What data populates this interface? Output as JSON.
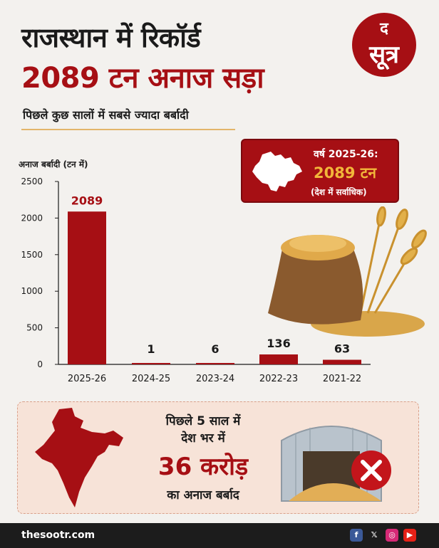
{
  "header": {
    "title_line1": "राजस्थान में रिकॉर्ड",
    "title_line2": "2089 टन अनाज सड़ा",
    "subtitle": "पिछले कुछ सालों में सबसे ज्यादा बर्बादी"
  },
  "logo": {
    "line1": "द",
    "line2": "सूत्र"
  },
  "callout": {
    "year_label": "वर्ष 2025-26:",
    "value_label": "2089 टन",
    "note": "(देश में सर्वाधिक)"
  },
  "chart_data": {
    "type": "bar",
    "ylabel": "अनाज बर्बादी (टन में)",
    "categories": [
      "2025-26",
      "2024-25",
      "2023-24",
      "2022-23",
      "2021-22"
    ],
    "values": [
      2089,
      1,
      6,
      136,
      63
    ],
    "value_labels": [
      "2089",
      "1",
      "6",
      "136",
      "63"
    ],
    "yticks": [
      "2500",
      "2000",
      "1500",
      "1000",
      "500",
      "0"
    ],
    "ylim": [
      0,
      2500
    ],
    "grid": false,
    "bar_color": "#a60f14"
  },
  "panel": {
    "line1": "पिछले 5 साल में",
    "line2": "देश भर में",
    "highlight": "36 करोड़",
    "line4": "का अनाज बर्बाद"
  },
  "footer": {
    "site": "thesootr.com",
    "icons": [
      "facebook-icon",
      "x-icon",
      "instagram-icon",
      "youtube-icon"
    ]
  },
  "colors": {
    "accent": "#a60f14",
    "gold": "#f2b63a",
    "panel_bg": "#f7e3d8",
    "footer_bg": "#1c1c1c"
  }
}
